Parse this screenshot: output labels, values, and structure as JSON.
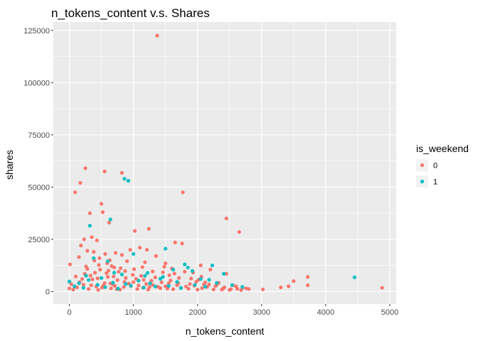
{
  "chart_data": {
    "type": "scatter",
    "title": "n_tokens_content v.s. Shares",
    "xlabel": "n_tokens_content",
    "ylabel": "shares",
    "xlim": [
      -250,
      5100
    ],
    "ylim": [
      -6000,
      129000
    ],
    "xticks": [
      0,
      1000,
      2000,
      3000,
      4000,
      5000
    ],
    "xtick_labels": [
      "0",
      "1000",
      "2000",
      "3000",
      "4000",
      "5000"
    ],
    "yticks": [
      0,
      25000,
      50000,
      75000,
      100000,
      125000
    ],
    "ytick_labels": [
      "0",
      "25000",
      "50000",
      "75000",
      "100000",
      "125000"
    ],
    "grid": true,
    "legend": {
      "title": "is_weekend",
      "position": "right"
    },
    "series": [
      {
        "name": "0",
        "color": "#F8766D",
        "points": [
          [
            1370,
            122500
          ],
          [
            250,
            59000
          ],
          [
            550,
            57500
          ],
          [
            820,
            56800
          ],
          [
            170,
            52000
          ],
          [
            90,
            47500
          ],
          [
            1770,
            47500
          ],
          [
            500,
            42000
          ],
          [
            520,
            38000
          ],
          [
            320,
            37500
          ],
          [
            2450,
            35000
          ],
          [
            620,
            33000
          ],
          [
            1240,
            30000
          ],
          [
            1020,
            29000
          ],
          [
            2650,
            28500
          ],
          [
            350,
            26000
          ],
          [
            230,
            25000
          ],
          [
            430,
            24500
          ],
          [
            1650,
            23500
          ],
          [
            1760,
            23000
          ],
          [
            180,
            22000
          ],
          [
            1100,
            21000
          ],
          [
            950,
            20000
          ],
          [
            1210,
            20000
          ],
          [
            280,
            19500
          ],
          [
            380,
            19000
          ],
          [
            720,
            18500
          ],
          [
            560,
            18000
          ],
          [
            820,
            17500
          ],
          [
            1350,
            17000
          ],
          [
            150,
            16500
          ],
          [
            470,
            16000
          ],
          [
            630,
            15000
          ],
          [
            900,
            14500
          ],
          [
            1180,
            14000
          ],
          [
            1500,
            13500
          ],
          [
            10,
            13000
          ],
          [
            2050,
            12500
          ],
          [
            260,
            12000
          ],
          [
            700,
            11500
          ],
          [
            1600,
            11000
          ],
          [
            2200,
            10500
          ],
          [
            1800,
            9500
          ],
          [
            2450,
            8500
          ],
          [
            3720,
            7000
          ],
          [
            3500,
            5000
          ],
          [
            4880,
            1800
          ],
          [
            3720,
            3000
          ],
          [
            3420,
            2500
          ],
          [
            3300,
            2000
          ],
          [
            3020,
            1000
          ],
          [
            2800,
            1200
          ],
          [
            2600,
            2500
          ],
          [
            2400,
            1500
          ],
          [
            2700,
            1800
          ],
          [
            2550,
            3000
          ],
          [
            2100,
            3500
          ],
          [
            1950,
            2800
          ],
          [
            1700,
            4000
          ],
          [
            1500,
            2500
          ],
          [
            1300,
            3200
          ],
          [
            1150,
            1800
          ],
          [
            1000,
            4500
          ],
          [
            850,
            2200
          ],
          [
            750,
            5500
          ],
          [
            650,
            1500
          ],
          [
            600,
            7000
          ],
          [
            400,
            9000
          ],
          [
            340,
            3000
          ],
          [
            300,
            1200
          ],
          [
            200,
            6000
          ],
          [
            120,
            2000
          ],
          [
            60,
            900
          ],
          [
            30,
            3500
          ],
          [
            0,
            1500
          ],
          [
            450,
            800
          ],
          [
            550,
            4000
          ],
          [
            680,
            3300
          ],
          [
            790,
            900
          ],
          [
            880,
            6500
          ],
          [
            960,
            2600
          ],
          [
            1060,
            1200
          ],
          [
            1120,
            7500
          ],
          [
            1230,
            900
          ],
          [
            1280,
            5200
          ],
          [
            1420,
            1600
          ],
          [
            1560,
            7800
          ],
          [
            1620,
            1100
          ],
          [
            1860,
            1300
          ],
          [
            1900,
            6200
          ],
          [
            2000,
            900
          ],
          [
            2150,
            2200
          ],
          [
            2250,
            1000
          ],
          [
            2330,
            4200
          ],
          [
            2500,
            800
          ],
          [
            2620,
            1300
          ],
          [
            160,
            4500
          ],
          [
            240,
            8500
          ],
          [
            360,
            5800
          ],
          [
            420,
            2400
          ],
          [
            480,
            10500
          ],
          [
            510,
            1900
          ],
          [
            580,
            8800
          ],
          [
            640,
            3900
          ],
          [
            710,
            2700
          ],
          [
            770,
            9500
          ],
          [
            930,
            3800
          ],
          [
            990,
            8000
          ],
          [
            1080,
            2900
          ],
          [
            1160,
            5600
          ],
          [
            1250,
            2100
          ],
          [
            1340,
            6800
          ],
          [
            1440,
            4400
          ],
          [
            1530,
            1400
          ],
          [
            1680,
            3100
          ],
          [
            1740,
            1700
          ],
          [
            1820,
            2400
          ],
          [
            1980,
            4700
          ],
          [
            2070,
            1600
          ],
          [
            2180,
            3400
          ],
          [
            2280,
            2600
          ],
          [
            2380,
            900
          ],
          [
            2420,
            2000
          ],
          [
            2520,
            1100
          ],
          [
            2680,
            700
          ],
          [
            2760,
            1500
          ],
          [
            220,
            3300
          ],
          [
            330,
            7600
          ],
          [
            440,
            6300
          ],
          [
            530,
            2800
          ],
          [
            610,
            10000
          ],
          [
            690,
            7200
          ],
          [
            740,
            1100
          ],
          [
            860,
            4600
          ],
          [
            1040,
            6100
          ],
          [
            1200,
            3600
          ],
          [
            1380,
            2300
          ],
          [
            1460,
            9200
          ],
          [
            1580,
            5300
          ],
          [
            1710,
            6500
          ],
          [
            1880,
            3600
          ],
          [
            2020,
            5700
          ],
          [
            2120,
            4400
          ],
          [
            2300,
            3300
          ],
          [
            100,
            7200
          ],
          [
            280,
            10800
          ],
          [
            390,
            14800
          ],
          [
            460,
            12700
          ],
          [
            590,
            13500
          ],
          [
            660,
            12200
          ],
          [
            800,
            11200
          ],
          [
            870,
            9800
          ],
          [
            1010,
            10700
          ],
          [
            1140,
            11700
          ],
          [
            1300,
            9600
          ],
          [
            1480,
            11900
          ],
          [
            1550,
            3900
          ],
          [
            1640,
            8600
          ],
          [
            1930,
            9100
          ],
          [
            2060,
            7100
          ]
        ]
      },
      {
        "name": "1",
        "color": "#00BFC4",
        "points": [
          [
            860,
            54000
          ],
          [
            920,
            53000
          ],
          [
            640,
            34500
          ],
          [
            320,
            31500
          ],
          [
            1500,
            20500
          ],
          [
            1000,
            18000
          ],
          [
            380,
            16000
          ],
          [
            600,
            14500
          ],
          [
            1800,
            13000
          ],
          [
            2230,
            12500
          ],
          [
            1850,
            11500
          ],
          [
            1620,
            10500
          ],
          [
            1920,
            9800
          ],
          [
            2410,
            8500
          ],
          [
            4450,
            6800
          ],
          [
            2050,
            6000
          ],
          [
            1180,
            7500
          ],
          [
            700,
            9000
          ],
          [
            500,
            6500
          ],
          [
            300,
            5500
          ],
          [
            150,
            4000
          ],
          [
            0,
            4800
          ],
          [
            80,
            2500
          ],
          [
            220,
            1800
          ],
          [
            440,
            3200
          ],
          [
            560,
            2100
          ],
          [
            680,
            4200
          ],
          [
            760,
            1400
          ],
          [
            880,
            3600
          ],
          [
            960,
            2800
          ],
          [
            1080,
            5200
          ],
          [
            1160,
            1900
          ],
          [
            1260,
            3900
          ],
          [
            1340,
            2400
          ],
          [
            1420,
            6100
          ],
          [
            1550,
            2700
          ],
          [
            1680,
            4600
          ],
          [
            1740,
            1700
          ],
          [
            1960,
            3200
          ],
          [
            2120,
            2300
          ],
          [
            2300,
            4100
          ],
          [
            2540,
            3100
          ],
          [
            2700,
            2200
          ],
          [
            260,
            7600
          ],
          [
            820,
            8200
          ],
          [
            1220,
            8900
          ],
          [
            1460,
            7000
          ],
          [
            2180,
            5600
          ]
        ]
      }
    ]
  }
}
